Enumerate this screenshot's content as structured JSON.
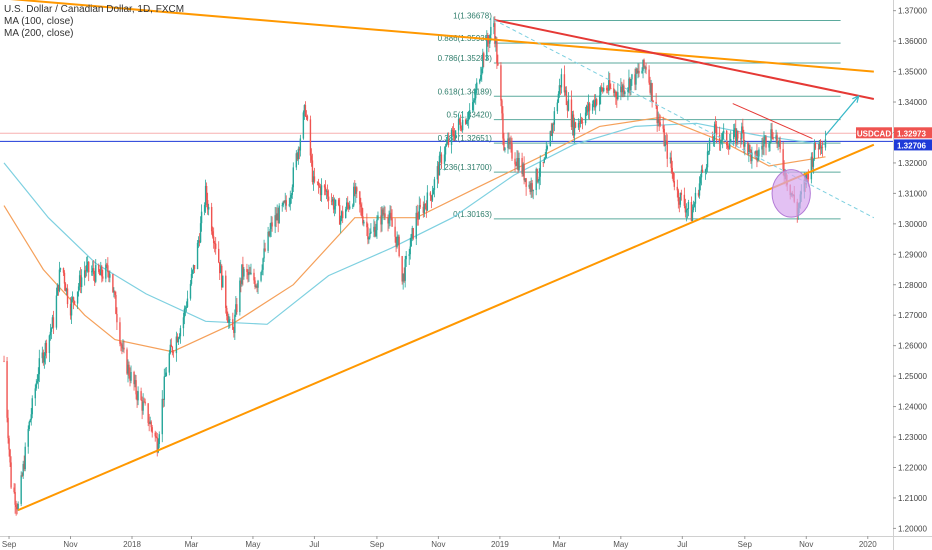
{
  "header": {
    "title": "U.S. Dollar / Canadian Dollar, 1D, FXCM",
    "ma_lines": [
      "MA (100, close)",
      "MA (200, close)"
    ]
  },
  "colors": {
    "up": "#26a69a",
    "down": "#ef5350",
    "ma100": "#f5a05a",
    "ma200": "#7ed0e0",
    "trend_orange": "#ff9800",
    "trend_red": "#e53935",
    "fib": "#3f9c8c",
    "blue_level": "#1e3ad8",
    "pink_level": "#f7b0b0",
    "ellipse": "#d7a6ee"
  },
  "chart_data": {
    "type": "candlestick",
    "symbol": "USDCAD",
    "interval": "1D",
    "x_ticks": [
      "Sep",
      "Nov",
      "2018",
      "Mar",
      "May",
      "Jul",
      "Sep",
      "Nov",
      "2019",
      "Mar",
      "May",
      "Jul",
      "Sep",
      "Nov",
      "2020"
    ],
    "y_ticks": [
      "1.37000",
      "1.36000",
      "1.35000",
      "1.34000",
      "1.33000",
      "1.32000",
      "1.31000",
      "1.30000",
      "1.29000",
      "1.28000",
      "1.27000",
      "1.26000",
      "1.25000",
      "1.24000",
      "1.23000",
      "1.22000",
      "1.21000",
      "1.20000"
    ],
    "ylim": [
      1.1975,
      1.3735
    ],
    "price_labels": [
      {
        "label": "USDCAD",
        "value": "1.32973"
      },
      {
        "label": "",
        "value": "1.32706"
      }
    ],
    "fib_levels": [
      {
        "label": "1(1.36678)",
        "value": 1.36678
      },
      {
        "label": "0.886(1.35935)",
        "value": 1.35935
      },
      {
        "label": "0.786(1.35283)",
        "value": 1.35283
      },
      {
        "label": "0.618(1.34189)",
        "value": 1.34189
      },
      {
        "label": "0.5(1.33420)",
        "value": 1.3342
      },
      {
        "label": "0.382(1.32651)",
        "value": 1.32651
      },
      {
        "label": "0.236(1.31700)",
        "value": 1.317
      },
      {
        "label": "0(1.30163)",
        "value": 1.30163
      }
    ],
    "price_path": [
      {
        "x": "2017-09-01",
        "y": 1.255
      },
      {
        "x": "2017-09-08",
        "y": 1.215
      },
      {
        "x": "2017-09-15",
        "y": 1.207
      },
      {
        "x": "2017-09-25",
        "y": 1.232
      },
      {
        "x": "2017-10-05",
        "y": 1.252
      },
      {
        "x": "2017-10-20",
        "y": 1.268
      },
      {
        "x": "2017-10-28",
        "y": 1.288
      },
      {
        "x": "2017-11-05",
        "y": 1.272
      },
      {
        "x": "2017-11-20",
        "y": 1.285
      },
      {
        "x": "2017-12-05",
        "y": 1.283
      },
      {
        "x": "2017-12-15",
        "y": 1.285
      },
      {
        "x": "2017-12-28",
        "y": 1.257
      },
      {
        "x": "2018-01-10",
        "y": 1.245
      },
      {
        "x": "2018-01-20",
        "y": 1.238
      },
      {
        "x": "2018-01-31",
        "y": 1.228
      },
      {
        "x": "2018-02-10",
        "y": 1.255
      },
      {
        "x": "2018-02-25",
        "y": 1.268
      },
      {
        "x": "2018-03-10",
        "y": 1.288
      },
      {
        "x": "2018-03-20",
        "y": 1.31
      },
      {
        "x": "2018-04-01",
        "y": 1.29
      },
      {
        "x": "2018-04-15",
        "y": 1.262
      },
      {
        "x": "2018-04-25",
        "y": 1.284
      },
      {
        "x": "2018-05-10",
        "y": 1.281
      },
      {
        "x": "2018-05-25",
        "y": 1.3
      },
      {
        "x": "2018-06-10",
        "y": 1.307
      },
      {
        "x": "2018-06-27",
        "y": 1.338
      },
      {
        "x": "2018-07-05",
        "y": 1.313
      },
      {
        "x": "2018-07-20",
        "y": 1.31
      },
      {
        "x": "2018-08-01",
        "y": 1.302
      },
      {
        "x": "2018-08-15",
        "y": 1.31
      },
      {
        "x": "2018-08-30",
        "y": 1.296
      },
      {
        "x": "2018-09-15",
        "y": 1.305
      },
      {
        "x": "2018-09-28",
        "y": 1.292
      },
      {
        "x": "2018-10-01",
        "y": 1.281
      },
      {
        "x": "2018-10-15",
        "y": 1.302
      },
      {
        "x": "2018-10-30",
        "y": 1.31
      },
      {
        "x": "2018-11-10",
        "y": 1.323
      },
      {
        "x": "2018-11-25",
        "y": 1.332
      },
      {
        "x": "2018-12-10",
        "y": 1.338
      },
      {
        "x": "2018-12-20",
        "y": 1.355
      },
      {
        "x": "2018-12-31",
        "y": 1.366
      },
      {
        "x": "2019-01-10",
        "y": 1.327
      },
      {
        "x": "2019-01-25",
        "y": 1.32
      },
      {
        "x": "2019-02-05",
        "y": 1.312
      },
      {
        "x": "2019-02-20",
        "y": 1.32
      },
      {
        "x": "2019-03-08",
        "y": 1.348
      },
      {
        "x": "2019-03-20",
        "y": 1.332
      },
      {
        "x": "2019-04-05",
        "y": 1.338
      },
      {
        "x": "2019-04-20",
        "y": 1.345
      },
      {
        "x": "2019-05-01",
        "y": 1.343
      },
      {
        "x": "2019-05-20",
        "y": 1.348
      },
      {
        "x": "2019-05-31",
        "y": 1.352
      },
      {
        "x": "2019-06-10",
        "y": 1.337
      },
      {
        "x": "2019-06-20",
        "y": 1.325
      },
      {
        "x": "2019-07-01",
        "y": 1.31
      },
      {
        "x": "2019-07-15",
        "y": 1.303
      },
      {
        "x": "2019-07-25",
        "y": 1.316
      },
      {
        "x": "2019-08-07",
        "y": 1.33
      },
      {
        "x": "2019-08-20",
        "y": 1.327
      },
      {
        "x": "2019-09-03",
        "y": 1.33
      },
      {
        "x": "2019-09-15",
        "y": 1.32
      },
      {
        "x": "2019-09-25",
        "y": 1.327
      },
      {
        "x": "2019-10-05",
        "y": 1.331
      },
      {
        "x": "2019-10-15",
        "y": 1.318
      },
      {
        "x": "2019-10-28",
        "y": 1.304
      },
      {
        "x": "2019-11-05",
        "y": 1.314
      },
      {
        "x": "2019-11-15",
        "y": 1.325
      },
      {
        "x": "2019-11-25",
        "y": 1.329
      }
    ],
    "ma100_path": [
      {
        "x": "2017-09-01",
        "y": 1.306
      },
      {
        "x": "2017-10-10",
        "y": 1.285
      },
      {
        "x": "2017-11-20",
        "y": 1.27
      },
      {
        "x": "2017-12-20",
        "y": 1.262
      },
      {
        "x": "2018-02-15",
        "y": 1.258
      },
      {
        "x": "2018-04-15",
        "y": 1.267
      },
      {
        "x": "2018-06-15",
        "y": 1.28
      },
      {
        "x": "2018-08-15",
        "y": 1.302
      },
      {
        "x": "2018-10-15",
        "y": 1.302
      },
      {
        "x": "2018-12-15",
        "y": 1.312
      },
      {
        "x": "2019-02-15",
        "y": 1.322
      },
      {
        "x": "2019-04-15",
        "y": 1.332
      },
      {
        "x": "2019-06-15",
        "y": 1.335
      },
      {
        "x": "2019-08-15",
        "y": 1.327
      },
      {
        "x": "2019-09-30",
        "y": 1.319
      },
      {
        "x": "2019-11-25",
        "y": 1.322
      }
    ],
    "ma200_path": [
      {
        "x": "2017-09-01",
        "y": 1.32
      },
      {
        "x": "2017-10-15",
        "y": 1.302
      },
      {
        "x": "2017-12-01",
        "y": 1.287
      },
      {
        "x": "2018-01-20",
        "y": 1.277
      },
      {
        "x": "2018-03-20",
        "y": 1.268
      },
      {
        "x": "2018-05-20",
        "y": 1.267
      },
      {
        "x": "2018-07-20",
        "y": 1.283
      },
      {
        "x": "2018-09-20",
        "y": 1.292
      },
      {
        "x": "2018-11-20",
        "y": 1.302
      },
      {
        "x": "2019-01-20",
        "y": 1.316
      },
      {
        "x": "2019-03-20",
        "y": 1.326
      },
      {
        "x": "2019-05-20",
        "y": 1.332
      },
      {
        "x": "2019-07-20",
        "y": 1.333
      },
      {
        "x": "2019-09-20",
        "y": 1.329
      },
      {
        "x": "2019-11-25",
        "y": 1.326
      }
    ],
    "trendlines": [
      {
        "name": "orange-support",
        "color": "trend_orange",
        "style": "solid",
        "from": {
          "x": "2017-09-15",
          "y": 1.206
        },
        "to": {
          "x": "2020-01-12",
          "y": 1.326
        }
      },
      {
        "name": "orange-resistance",
        "color": "trend_orange",
        "style": "solid",
        "from": {
          "x": "2017-09-01",
          "y": 1.374
        },
        "to": {
          "x": "2020-01-12",
          "y": 1.35
        }
      },
      {
        "name": "red-resistance",
        "color": "trend_red",
        "style": "solid",
        "from": {
          "x": "2018-12-31",
          "y": 1.367
        },
        "to": {
          "x": "2020-01-12",
          "y": 1.341
        }
      },
      {
        "name": "red-short-resistance",
        "color": "trend_red",
        "style": "thin",
        "from": {
          "x": "2019-08-25",
          "y": 1.3395
        },
        "to": {
          "x": "2019-11-12",
          "y": 1.328
        }
      },
      {
        "name": "dashed-channel",
        "color": "ma200",
        "style": "dashed",
        "from": {
          "x": "2018-12-31",
          "y": 1.367
        },
        "to": {
          "x": "2020-01-12",
          "y": 1.302
        }
      }
    ],
    "projection_arrow": {
      "from": {
        "x": "2019-11-25",
        "y": 1.329
      },
      "to": {
        "x": "2019-12-28",
        "y": 1.342
      }
    },
    "highlight_ellipse": {
      "center": {
        "x": "2019-10-22",
        "y": 1.31
      },
      "rx_days": 19,
      "ry": 0.0078
    }
  }
}
